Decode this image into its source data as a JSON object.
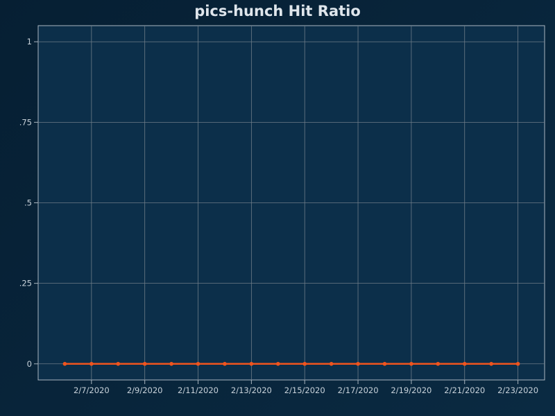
{
  "chart_data": {
    "type": "line",
    "title": "pics-hunch Hit Ratio",
    "xlabel": "",
    "ylabel": "",
    "x_ticks": [
      "2/7/2020",
      "2/9/2020",
      "2/11/2020",
      "2/13/2020",
      "2/15/2020",
      "2/17/2020",
      "2/19/2020",
      "2/21/2020",
      "2/23/2020"
    ],
    "y_ticks": [
      "0",
      ".25",
      ".5",
      ".75",
      "1"
    ],
    "y_tick_values": [
      0,
      0.25,
      0.5,
      0.75,
      1
    ],
    "ylim": [
      -0.05,
      1.05
    ],
    "xlim": [
      "2020-02-05",
      "2020-02-24"
    ],
    "grid": true,
    "series": [
      {
        "color": "#f0541e",
        "x": [
          "2020-02-06",
          "2020-02-07",
          "2020-02-08",
          "2020-02-09",
          "2020-02-10",
          "2020-02-11",
          "2020-02-12",
          "2020-02-13",
          "2020-02-14",
          "2020-02-15",
          "2020-02-16",
          "2020-02-17",
          "2020-02-18",
          "2020-02-19",
          "2020-02-20",
          "2020-02-21",
          "2020-02-22",
          "2020-02-23"
        ],
        "y": [
          0,
          0,
          0,
          0,
          0,
          0,
          0,
          0,
          0,
          0,
          0,
          0,
          0,
          0,
          0,
          0,
          0,
          0
        ]
      }
    ]
  },
  "colors": {
    "background": "#082539",
    "plot_background": "#0c2f4a",
    "grid": "#6e7c88",
    "axis": "#aab6c0",
    "text": "#c8d2da",
    "title": "#dfe6ec",
    "series": "#f0541e"
  }
}
